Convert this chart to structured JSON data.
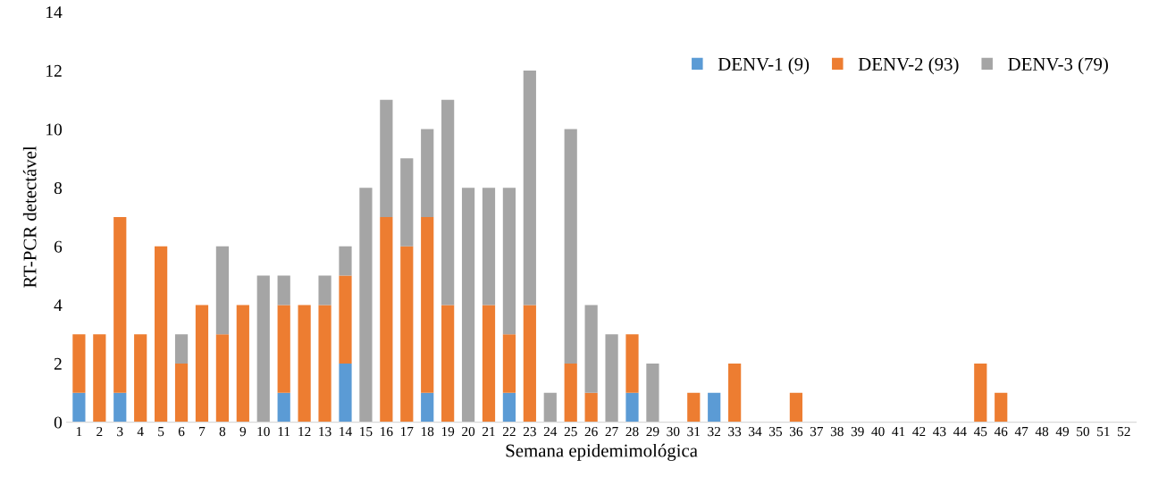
{
  "chart_data": {
    "type": "bar",
    "stacked": true,
    "xlabel": "Semana epidemimológica",
    "ylabel": "RT-PCR detectável",
    "categories": [
      "1",
      "2",
      "3",
      "4",
      "5",
      "6",
      "7",
      "8",
      "9",
      "10",
      "11",
      "12",
      "13",
      "14",
      "15",
      "16",
      "17",
      "18",
      "19",
      "20",
      "21",
      "22",
      "23",
      "24",
      "25",
      "26",
      "27",
      "28",
      "29",
      "30",
      "31",
      "32",
      "33",
      "34",
      "35",
      "36",
      "37",
      "38",
      "39",
      "40",
      "41",
      "42",
      "43",
      "44",
      "45",
      "46",
      "47",
      "48",
      "49",
      "50",
      "51",
      "52"
    ],
    "series": [
      {
        "name": "DENV-1 (9)",
        "color": "#5b9bd5",
        "values": [
          1,
          0,
          1,
          0,
          0,
          0,
          0,
          0,
          0,
          0,
          1,
          0,
          0,
          2,
          0,
          0,
          0,
          1,
          0,
          0,
          0,
          1,
          0,
          0,
          0,
          0,
          0,
          1,
          0,
          0,
          0,
          1,
          0,
          0,
          0,
          0,
          0,
          0,
          0,
          0,
          0,
          0,
          0,
          0,
          0,
          0,
          0,
          0,
          0,
          0,
          0,
          0
        ]
      },
      {
        "name": "DENV-2 (93)",
        "color": "#ed7d31",
        "values": [
          2,
          3,
          6,
          3,
          6,
          2,
          4,
          3,
          4,
          0,
          3,
          4,
          4,
          3,
          0,
          7,
          6,
          6,
          4,
          0,
          4,
          2,
          4,
          0,
          2,
          1,
          0,
          2,
          0,
          0,
          1,
          0,
          2,
          0,
          0,
          1,
          0,
          0,
          0,
          0,
          0,
          0,
          0,
          0,
          2,
          1,
          0,
          0,
          0,
          0,
          0,
          0
        ]
      },
      {
        "name": "DENV-3 (79)",
        "color": "#a5a5a5",
        "values": [
          0,
          0,
          0,
          0,
          0,
          1,
          0,
          3,
          0,
          5,
          1,
          0,
          1,
          1,
          8,
          4,
          3,
          3,
          7,
          8,
          4,
          5,
          8,
          1,
          8,
          3,
          3,
          0,
          2,
          0,
          0,
          0,
          0,
          0,
          0,
          0,
          0,
          0,
          0,
          0,
          0,
          0,
          0,
          0,
          0,
          0,
          0,
          0,
          0,
          0,
          0,
          0
        ]
      }
    ],
    "ylim": [
      0,
      14
    ],
    "yticks": [
      0,
      2,
      4,
      6,
      8,
      10,
      12,
      14
    ],
    "grid": false,
    "legend": "top right"
  }
}
